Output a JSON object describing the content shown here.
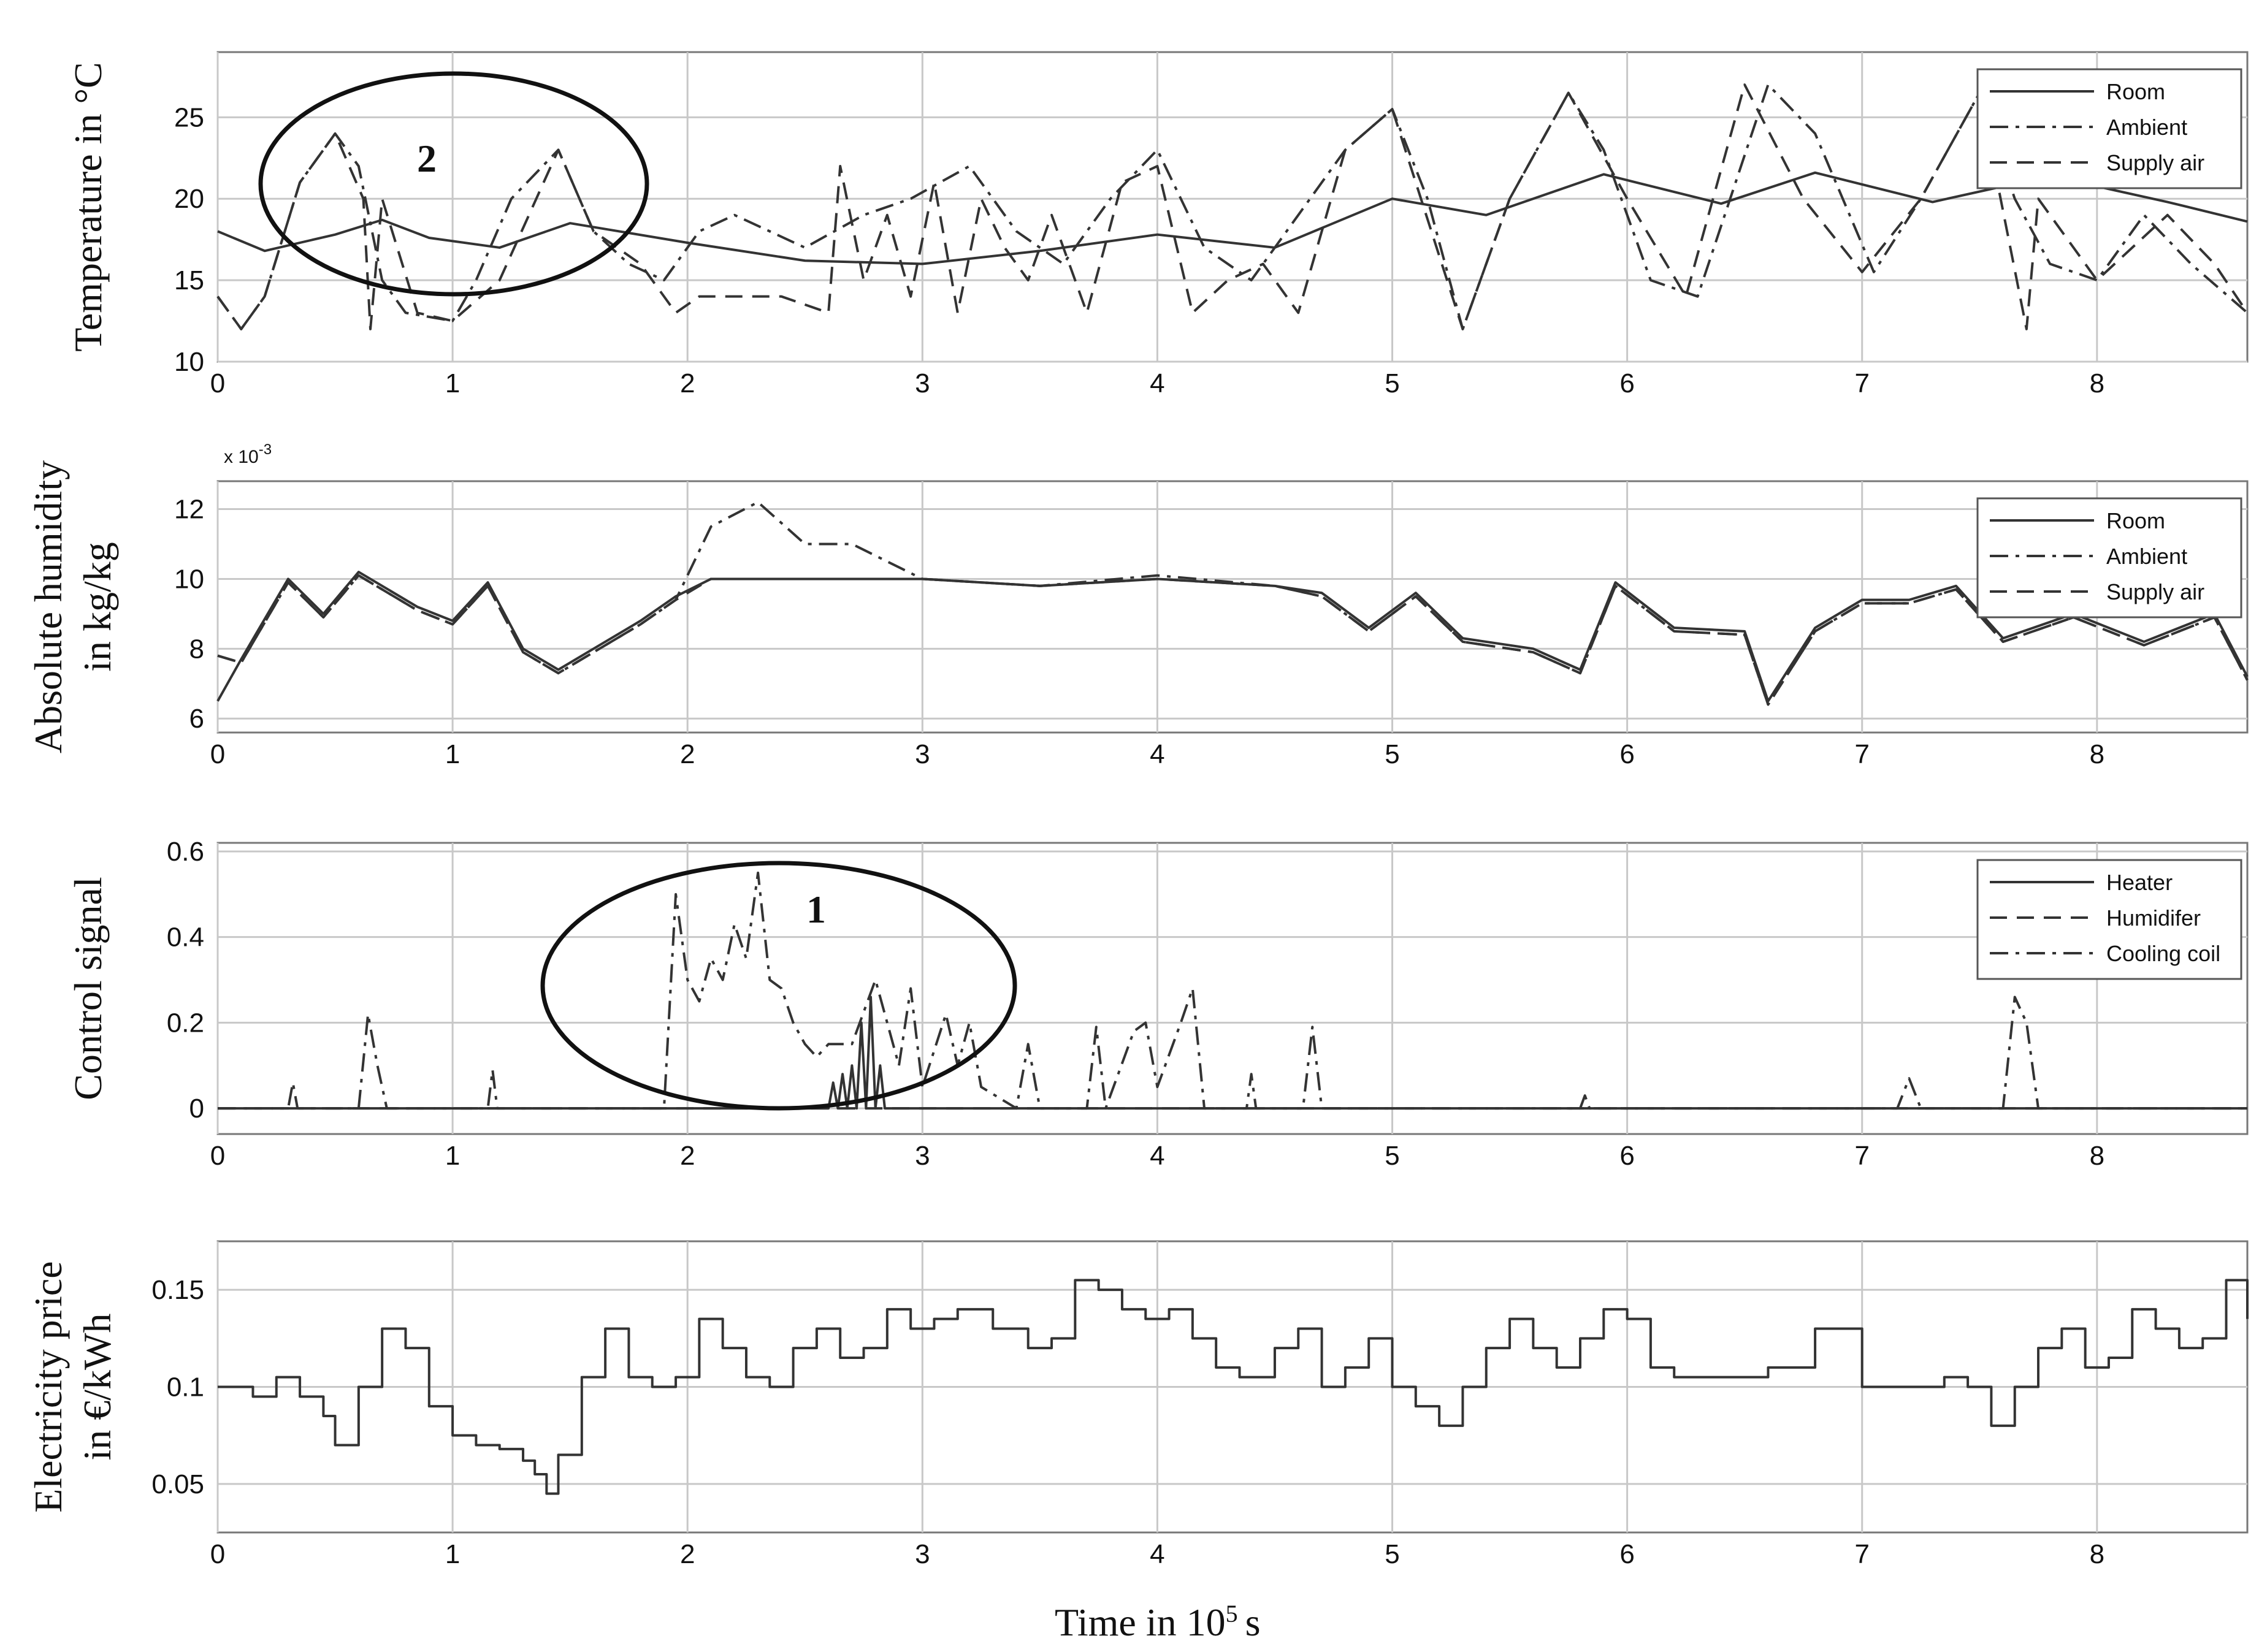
{
  "x_axis_label": "Time in 10",
  "x_axis_label_exponent": "5",
  "x_axis_label_unit": "s",
  "annotations": [
    "2",
    "1"
  ],
  "chart_data": [
    {
      "type": "line",
      "ylabel": "Temperature in °C",
      "xlim": [
        0,
        8.64
      ],
      "ylim": [
        10,
        29
      ],
      "xticks": [
        0,
        1,
        2,
        3,
        4,
        5,
        6,
        7,
        8
      ],
      "yticks": [
        10,
        15,
        20,
        25
      ],
      "grid": true,
      "legend_position": "top-right",
      "series": [
        {
          "name": "Room",
          "style": "solid",
          "x": [
            0,
            0.2,
            0.5,
            0.7,
            0.9,
            1.2,
            1.5,
            2.0,
            2.5,
            3.0,
            3.5,
            4.0,
            4.5,
            5.0,
            5.4,
            5.9,
            6.4,
            6.8,
            7.3,
            7.8,
            8.3,
            8.64
          ],
          "y": [
            18,
            16.8,
            17.8,
            18.7,
            17.6,
            17.0,
            18.5,
            17.3,
            16.2,
            16.0,
            16.8,
            17.8,
            17.0,
            20.0,
            19.0,
            21.5,
            19.7,
            21.6,
            19.8,
            21.4,
            19.8,
            18.6
          ]
        },
        {
          "name": "Ambient",
          "style": "dash-dot",
          "x": [
            0,
            0.1,
            0.2,
            0.35,
            0.5,
            0.6,
            0.7,
            0.8,
            1.0,
            1.1,
            1.25,
            1.45,
            1.6,
            1.75,
            1.9,
            2.05,
            2.2,
            2.5,
            2.75,
            2.95,
            3.2,
            3.4,
            3.6,
            3.8,
            4.0,
            4.2,
            4.4,
            4.6,
            4.8,
            5.0,
            5.15,
            5.3,
            5.5,
            5.75,
            5.9,
            6.1,
            6.3,
            6.6,
            6.8,
            7.05,
            7.25,
            7.5,
            7.65,
            7.8,
            8.0,
            8.2,
            8.4,
            8.64
          ],
          "y": [
            14,
            12,
            14,
            21,
            24,
            22,
            15,
            13,
            12.5,
            15,
            20,
            23,
            18,
            16,
            15,
            18,
            19,
            17,
            19,
            20,
            22,
            18,
            16,
            20,
            23,
            17,
            15,
            19,
            23,
            25.5,
            20,
            12,
            20,
            26.5,
            23,
            15,
            14,
            27,
            24,
            15.5,
            20,
            26.5,
            20,
            16,
            15,
            19,
            16,
            13
          ]
        },
        {
          "name": "Supply air",
          "style": "dashed",
          "x": [
            0,
            0.1,
            0.2,
            0.35,
            0.5,
            0.62,
            0.65,
            0.7,
            0.85,
            1.0,
            1.2,
            1.45,
            1.6,
            1.8,
            1.95,
            2.05,
            2.4,
            2.6,
            2.65,
            2.75,
            2.85,
            2.95,
            3.05,
            3.15,
            3.25,
            3.35,
            3.45,
            3.55,
            3.7,
            3.85,
            4.0,
            4.15,
            4.3,
            4.45,
            4.6,
            4.8,
            5.0,
            5.3,
            5.5,
            5.75,
            6.0,
            6.25,
            6.5,
            6.75,
            7.0,
            7.25,
            7.5,
            7.7,
            7.75,
            8.0,
            8.3,
            8.5,
            8.64
          ],
          "y": [
            14,
            12,
            14,
            21,
            24,
            20,
            12,
            20,
            13,
            12.5,
            15,
            23,
            18,
            16,
            13,
            14,
            14,
            13,
            22,
            15,
            19,
            14,
            21,
            13,
            20,
            17,
            15,
            19,
            13,
            21,
            22,
            13,
            15,
            16,
            13,
            23,
            25.5,
            12,
            20,
            26.5,
            20,
            14,
            27,
            20,
            15.5,
            20,
            26.5,
            12,
            20,
            15,
            19,
            16,
            13
          ]
        }
      ]
    },
    {
      "type": "line",
      "ylabel": "Absolute humidity in kg/kg",
      "ylabel_lines": [
        "Absolute humidity",
        "in kg/kg"
      ],
      "y_multiplier": "x 10",
      "y_multiplier_exponent": "-3",
      "xlim": [
        0,
        8.64
      ],
      "ylim": [
        5.6,
        12.8
      ],
      "xticks": [
        0,
        1,
        2,
        3,
        4,
        5,
        6,
        7,
        8
      ],
      "yticks": [
        6,
        8,
        10,
        12
      ],
      "grid": true,
      "legend_position": "top-right",
      "series": [
        {
          "name": "Room",
          "style": "solid",
          "x": [
            0,
            0.1,
            0.3,
            0.45,
            0.6,
            0.7,
            0.85,
            1.0,
            1.15,
            1.3,
            1.45,
            1.6,
            1.8,
            1.95,
            2.1,
            2.5,
            3.0,
            3.5,
            4.0,
            4.5,
            4.7,
            4.9,
            5.1,
            5.3,
            5.6,
            5.8,
            5.95,
            6.2,
            6.5,
            6.6,
            6.8,
            7.0,
            7.2,
            7.4,
            7.6,
            7.9,
            8.2,
            8.5,
            8.64
          ],
          "y": [
            6.5,
            7.7,
            10.0,
            9.0,
            10.2,
            9.8,
            9.2,
            8.8,
            9.9,
            8.0,
            7.4,
            8.0,
            8.8,
            9.5,
            10.0,
            10.0,
            10.0,
            9.8,
            10.0,
            9.8,
            9.6,
            8.6,
            9.6,
            8.3,
            8.0,
            7.4,
            9.9,
            8.6,
            8.5,
            6.5,
            8.6,
            9.4,
            9.4,
            9.8,
            8.3,
            9.0,
            8.2,
            9.0,
            7.2
          ]
        },
        {
          "name": "Ambient",
          "style": "dash-dot",
          "x": [
            0,
            0.1,
            0.3,
            0.45,
            0.6,
            0.7,
            0.85,
            1.0,
            1.15,
            1.3,
            1.45,
            1.6,
            1.8,
            1.95,
            2.1,
            2.3,
            2.5,
            2.7,
            2.85,
            3.0,
            3.5,
            4.0,
            4.5,
            4.7,
            4.9,
            5.1,
            5.3,
            5.6,
            5.8,
            5.95,
            6.2,
            6.5,
            6.6,
            6.8,
            7.0,
            7.2,
            7.4,
            7.6,
            7.9,
            8.2,
            8.5,
            8.64
          ],
          "y": [
            7.8,
            7.6,
            9.9,
            8.9,
            10.1,
            9.7,
            9.1,
            8.7,
            9.8,
            7.9,
            7.3,
            7.9,
            8.7,
            9.4,
            11.5,
            12.2,
            11.0,
            11.0,
            10.5,
            10.0,
            9.8,
            10.1,
            9.8,
            9.5,
            8.5,
            9.5,
            8.2,
            7.9,
            7.3,
            9.8,
            8.5,
            8.4,
            6.4,
            8.5,
            9.3,
            9.3,
            9.7,
            8.2,
            8.9,
            8.1,
            8.9,
            7.1
          ]
        },
        {
          "name": "Supply air",
          "style": "dashed",
          "x": [
            0,
            0.1,
            0.3,
            0.45,
            0.6,
            0.7,
            0.85,
            1.0,
            1.15,
            1.3,
            1.45,
            1.6,
            1.8,
            1.95,
            2.1,
            2.5,
            3.0,
            3.5,
            4.0,
            4.5,
            4.7,
            4.9,
            5.1,
            5.3,
            5.6,
            5.8,
            5.95,
            6.2,
            6.5,
            6.6,
            6.8,
            7.0,
            7.2,
            7.4,
            7.6,
            7.9,
            8.2,
            8.5,
            8.64
          ],
          "y": [
            7.8,
            7.6,
            9.9,
            8.9,
            10.1,
            9.7,
            9.1,
            8.7,
            9.8,
            7.9,
            7.3,
            7.9,
            8.7,
            9.4,
            10.0,
            10.0,
            10.0,
            9.8,
            10.0,
            9.8,
            9.5,
            8.5,
            9.5,
            8.2,
            7.9,
            7.3,
            9.8,
            8.5,
            8.4,
            6.4,
            8.5,
            9.3,
            9.3,
            9.7,
            8.2,
            8.9,
            8.1,
            8.9,
            7.1
          ]
        }
      ]
    },
    {
      "type": "line",
      "ylabel": "Control signal",
      "xlim": [
        0,
        8.64
      ],
      "ylim": [
        -0.06,
        0.62
      ],
      "xticks": [
        0,
        1,
        2,
        3,
        4,
        5,
        6,
        7,
        8
      ],
      "yticks": [
        0,
        0.2,
        0.4,
        0.6
      ],
      "ytick_labels": [
        "0",
        "0.2",
        "0.4",
        "0.6"
      ],
      "grid": true,
      "legend_position": "top-right",
      "series": [
        {
          "name": "Heater",
          "style": "solid",
          "x": [
            0,
            2.6,
            2.62,
            2.64,
            2.66,
            2.68,
            2.7,
            2.72,
            2.74,
            2.76,
            2.78,
            2.8,
            2.82,
            2.84,
            8.64
          ],
          "y": [
            0,
            0,
            0.06,
            0,
            0.08,
            0,
            0.1,
            0,
            0.2,
            0,
            0.26,
            0,
            0.1,
            0,
            0
          ]
        },
        {
          "name": "Humidifer",
          "style": "dashed",
          "x": [
            0,
            8.64
          ],
          "y": [
            0,
            0
          ]
        },
        {
          "name": "Cooling coil",
          "style": "dash-dot",
          "x": [
            0,
            0.3,
            0.32,
            0.34,
            0.6,
            0.64,
            0.68,
            0.72,
            1.15,
            1.17,
            1.19,
            1.9,
            1.95,
            2.0,
            2.05,
            2.1,
            2.15,
            2.2,
            2.25,
            2.3,
            2.35,
            2.4,
            2.45,
            2.5,
            2.55,
            2.6,
            2.7,
            2.8,
            2.9,
            2.95,
            3.0,
            3.1,
            3.15,
            3.2,
            3.25,
            3.4,
            3.45,
            3.5,
            3.7,
            3.74,
            3.78,
            3.9,
            3.95,
            4.0,
            4.1,
            4.15,
            4.2,
            4.38,
            4.4,
            4.42,
            4.62,
            4.66,
            4.7,
            5.8,
            5.82,
            5.84,
            7.15,
            7.2,
            7.25,
            7.6,
            7.65,
            7.7,
            7.75,
            8.64
          ],
          "y": [
            0,
            0,
            0.06,
            0,
            0,
            0.22,
            0.1,
            0,
            0,
            0.09,
            0,
            0,
            0.5,
            0.3,
            0.25,
            0.35,
            0.3,
            0.43,
            0.35,
            0.55,
            0.3,
            0.28,
            0.2,
            0.15,
            0.12,
            0.15,
            0.15,
            0.3,
            0.1,
            0.28,
            0.05,
            0.22,
            0.1,
            0.2,
            0.05,
            0,
            0.15,
            0,
            0,
            0.19,
            0,
            0.18,
            0.2,
            0.05,
            0.2,
            0.28,
            0,
            0,
            0.08,
            0,
            0,
            0.19,
            0,
            0,
            0.03,
            0,
            0,
            0.07,
            0,
            0,
            0.26,
            0.2,
            0,
            0
          ]
        }
      ]
    },
    {
      "type": "line",
      "ylabel": "Electricity price in €/kWh",
      "ylabel_lines": [
        "Electricity price",
        "in €/kWh"
      ],
      "xlim": [
        0,
        8.64
      ],
      "ylim": [
        0.025,
        0.175
      ],
      "xticks": [
        0,
        1,
        2,
        3,
        4,
        5,
        6,
        7,
        8
      ],
      "yticks": [
        0.05,
        0.1,
        0.15
      ],
      "ytick_labels": [
        "0.05",
        "0.1",
        "0.15"
      ],
      "grid": true,
      "legend_position": "none",
      "series": [
        {
          "name": "",
          "style": "step",
          "x": [
            0,
            0.15,
            0.25,
            0.35,
            0.45,
            0.5,
            0.6,
            0.7,
            0.8,
            0.9,
            1.0,
            1.1,
            1.2,
            1.3,
            1.35,
            1.4,
            1.45,
            1.55,
            1.65,
            1.75,
            1.85,
            1.95,
            2.05,
            2.15,
            2.25,
            2.35,
            2.45,
            2.55,
            2.65,
            2.75,
            2.85,
            2.95,
            3.05,
            3.15,
            3.3,
            3.45,
            3.55,
            3.65,
            3.75,
            3.85,
            3.95,
            4.05,
            4.15,
            4.25,
            4.35,
            4.5,
            4.6,
            4.7,
            4.8,
            4.9,
            5.0,
            5.1,
            5.2,
            5.3,
            5.4,
            5.5,
            5.6,
            5.7,
            5.8,
            5.9,
            6.0,
            6.1,
            6.2,
            6.4,
            6.6,
            6.8,
            7.0,
            7.1,
            7.2,
            7.35,
            7.45,
            7.55,
            7.65,
            7.75,
            7.85,
            7.95,
            8.05,
            8.15,
            8.25,
            8.35,
            8.45,
            8.55,
            8.64
          ],
          "y": [
            0.1,
            0.095,
            0.105,
            0.095,
            0.085,
            0.07,
            0.1,
            0.13,
            0.12,
            0.09,
            0.075,
            0.07,
            0.068,
            0.062,
            0.055,
            0.045,
            0.065,
            0.105,
            0.13,
            0.105,
            0.1,
            0.105,
            0.135,
            0.12,
            0.105,
            0.1,
            0.12,
            0.13,
            0.115,
            0.12,
            0.14,
            0.13,
            0.135,
            0.14,
            0.13,
            0.12,
            0.125,
            0.155,
            0.15,
            0.14,
            0.135,
            0.14,
            0.125,
            0.11,
            0.105,
            0.12,
            0.13,
            0.1,
            0.11,
            0.125,
            0.1,
            0.09,
            0.08,
            0.1,
            0.12,
            0.135,
            0.12,
            0.11,
            0.125,
            0.14,
            0.135,
            0.11,
            0.105,
            0.105,
            0.11,
            0.13,
            0.1,
            0.1,
            0.1,
            0.105,
            0.1,
            0.08,
            0.1,
            0.12,
            0.13,
            0.11,
            0.115,
            0.14,
            0.13,
            0.12,
            0.125,
            0.155,
            0.135
          ]
        }
      ]
    }
  ]
}
